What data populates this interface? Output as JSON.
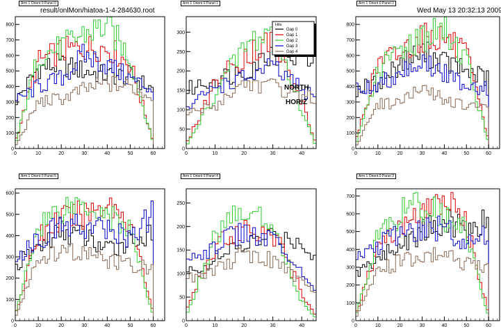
{
  "header": {
    "file": "result/onlMon/hiatoa-1-4-284630.root",
    "timestamp": "Wed May 13 20:32:13 2009"
  },
  "annotations": {
    "line1": "NORTH",
    "line2": "HORIZ"
  },
  "legend": {
    "title": "Hits",
    "entries": [
      "Gap 0",
      "Gap 1",
      "Gap 2",
      "Gap 3",
      "Gap 4"
    ]
  },
  "colors": {
    "Gap 0": "#000000",
    "Gap 1": "#e00000",
    "Gap 2": "#33cc33",
    "Gap 3": "#0000cc",
    "Gap 4": "#8a6a55",
    "axis": "#000000"
  },
  "chart_data": [
    {
      "type": "histogram",
      "title": "Arm 1 Orient 0 Panel 0",
      "xlim": [
        0,
        65
      ],
      "ylim": [
        0,
        850
      ],
      "xticks": [
        0,
        10,
        20,
        30,
        40,
        50,
        60
      ],
      "yticks": [
        0,
        100,
        200,
        300,
        400,
        500,
        600,
        700,
        800
      ],
      "nbins": 60,
      "series": [
        {
          "name": "Gap 0",
          "x": [
            0,
            10,
            20,
            30,
            40,
            50,
            60
          ],
          "y": [
            300,
            520,
            540,
            500,
            470,
            470,
            380
          ]
        },
        {
          "name": "Gap 1",
          "x": [
            0,
            10,
            20,
            30,
            40,
            50,
            60
          ],
          "y": [
            40,
            560,
            630,
            650,
            650,
            550,
            50
          ]
        },
        {
          "name": "Gap 2",
          "x": [
            0,
            10,
            20,
            30,
            40,
            50,
            60
          ],
          "y": [
            20,
            600,
            650,
            740,
            790,
            590,
            30
          ]
        },
        {
          "name": "Gap 3",
          "x": [
            0,
            10,
            20,
            30,
            40,
            50,
            60
          ],
          "y": [
            300,
            400,
            450,
            600,
            540,
            450,
            380
          ]
        },
        {
          "name": "Gap 4",
          "x": [
            0,
            10,
            20,
            30,
            40,
            50,
            60
          ],
          "y": [
            10,
            300,
            320,
            380,
            420,
            400,
            330
          ]
        }
      ]
    },
    {
      "type": "histogram",
      "title": "Arm 1 Orient 0 Panel 1",
      "xlim": [
        0,
        45
      ],
      "ylim": [
        0,
        340
      ],
      "xticks": [
        0,
        10,
        20,
        30,
        40
      ],
      "yticks": [
        0,
        50,
        100,
        150,
        200,
        250,
        300
      ],
      "nbins": 45,
      "series": [
        {
          "name": "Gap 0",
          "x": [
            0,
            10,
            20,
            30,
            40,
            45
          ],
          "y": [
            150,
            180,
            200,
            250,
            240,
            230
          ]
        },
        {
          "name": "Gap 1",
          "x": [
            0,
            10,
            20,
            30,
            40,
            45
          ],
          "y": [
            10,
            170,
            240,
            280,
            120,
            10
          ]
        },
        {
          "name": "Gap 2",
          "x": [
            0,
            10,
            20,
            30,
            40,
            45
          ],
          "y": [
            5,
            140,
            260,
            310,
            100,
            5
          ]
        },
        {
          "name": "Gap 3",
          "x": [
            0,
            10,
            20,
            30,
            40,
            45
          ],
          "y": [
            100,
            160,
            180,
            210,
            150,
            130
          ]
        },
        {
          "name": "Gap 4",
          "x": [
            0,
            10,
            20,
            30,
            40,
            45
          ],
          "y": [
            90,
            110,
            170,
            160,
            140,
            130
          ]
        }
      ]
    },
    {
      "type": "histogram",
      "title": "Arm 1 Orient 0 Panel 2",
      "xlim": [
        0,
        65
      ],
      "ylim": [
        0,
        850
      ],
      "xticks": [
        0,
        10,
        20,
        30,
        40,
        50,
        60
      ],
      "yticks": [
        0,
        100,
        200,
        300,
        400,
        500,
        600,
        700,
        800
      ],
      "nbins": 60,
      "series": [
        {
          "name": "Gap 0",
          "x": [
            0,
            10,
            20,
            30,
            40,
            50,
            60
          ],
          "y": [
            380,
            420,
            550,
            620,
            560,
            500,
            450
          ]
        },
        {
          "name": "Gap 1",
          "x": [
            0,
            10,
            20,
            30,
            40,
            50,
            60
          ],
          "y": [
            50,
            550,
            620,
            720,
            720,
            600,
            60
          ]
        },
        {
          "name": "Gap 2",
          "x": [
            0,
            10,
            20,
            30,
            40,
            50,
            60
          ],
          "y": [
            20,
            500,
            640,
            720,
            760,
            580,
            30
          ]
        },
        {
          "name": "Gap 3",
          "x": [
            0,
            10,
            20,
            30,
            40,
            50,
            60
          ],
          "y": [
            380,
            400,
            500,
            560,
            480,
            420,
            380
          ]
        },
        {
          "name": "Gap 4",
          "x": [
            0,
            10,
            20,
            30,
            40,
            50,
            60
          ],
          "y": [
            10,
            290,
            300,
            380,
            320,
            270,
            260
          ]
        }
      ]
    },
    {
      "type": "histogram",
      "title": "Arm 1 Orient 0 Panel 5",
      "xlim": [
        0,
        65
      ],
      "ylim": [
        0,
        620
      ],
      "xticks": [
        0,
        10,
        20,
        30,
        40,
        50,
        60
      ],
      "yticks": [
        0,
        100,
        200,
        300,
        400,
        500,
        600
      ],
      "nbins": 60,
      "series": [
        {
          "name": "Gap 0",
          "x": [
            0,
            10,
            20,
            30,
            40,
            50,
            60
          ],
          "y": [
            250,
            350,
            420,
            400,
            330,
            380,
            400
          ]
        },
        {
          "name": "Gap 1",
          "x": [
            0,
            10,
            20,
            30,
            40,
            50,
            60
          ],
          "y": [
            30,
            400,
            480,
            500,
            560,
            470,
            40
          ]
        },
        {
          "name": "Gap 2",
          "x": [
            0,
            10,
            20,
            30,
            40,
            50,
            60
          ],
          "y": [
            20,
            450,
            530,
            560,
            500,
            430,
            20
          ]
        },
        {
          "name": "Gap 3",
          "x": [
            0,
            10,
            20,
            30,
            40,
            50,
            60
          ],
          "y": [
            300,
            380,
            450,
            440,
            430,
            390,
            500
          ]
        },
        {
          "name": "Gap 4",
          "x": [
            0,
            10,
            20,
            30,
            40,
            50,
            60
          ],
          "y": [
            10,
            290,
            320,
            320,
            280,
            260,
            250
          ]
        }
      ]
    },
    {
      "type": "histogram",
      "title": "Arm 1 Orient 0 Panel 4",
      "xlim": [
        0,
        45
      ],
      "ylim": [
        0,
        280
      ],
      "xticks": [
        0,
        10,
        20,
        30,
        40
      ],
      "yticks": [
        0,
        50,
        100,
        150,
        200,
        250
      ],
      "nbins": 45,
      "series": [
        {
          "name": "Gap 0",
          "x": [
            0,
            10,
            20,
            30,
            40,
            45
          ],
          "y": [
            100,
            130,
            160,
            180,
            170,
            130
          ]
        },
        {
          "name": "Gap 1",
          "x": [
            0,
            10,
            20,
            30,
            40,
            45
          ],
          "y": [
            20,
            160,
            200,
            190,
            60,
            10
          ]
        },
        {
          "name": "Gap 2",
          "x": [
            0,
            10,
            20,
            30,
            40,
            45
          ],
          "y": [
            10,
            180,
            240,
            210,
            40,
            5
          ]
        },
        {
          "name": "Gap 3",
          "x": [
            0,
            10,
            20,
            30,
            40,
            45
          ],
          "y": [
            130,
            160,
            190,
            170,
            100,
            70
          ]
        },
        {
          "name": "Gap 4",
          "x": [
            0,
            10,
            20,
            30,
            40,
            45
          ],
          "y": [
            90,
            110,
            140,
            130,
            80,
            60
          ]
        }
      ]
    },
    {
      "type": "histogram",
      "title": "Arm 1 Orient 0 Panel 3",
      "xlim": [
        0,
        65
      ],
      "ylim": [
        0,
        740
      ],
      "xticks": [
        0,
        10,
        20,
        30,
        40,
        50,
        60
      ],
      "yticks": [
        0,
        100,
        200,
        300,
        400,
        500,
        600,
        700
      ],
      "nbins": 60,
      "series": [
        {
          "name": "Gap 0",
          "x": [
            0,
            10,
            20,
            30,
            40,
            50,
            60
          ],
          "y": [
            260,
            350,
            420,
            500,
            560,
            520,
            560
          ]
        },
        {
          "name": "Gap 1",
          "x": [
            0,
            10,
            20,
            30,
            40,
            50,
            60
          ],
          "y": [
            30,
            420,
            520,
            600,
            680,
            550,
            40
          ]
        },
        {
          "name": "Gap 2",
          "x": [
            0,
            10,
            20,
            30,
            40,
            50,
            60
          ],
          "y": [
            20,
            480,
            600,
            650,
            580,
            500,
            20
          ]
        },
        {
          "name": "Gap 3",
          "x": [
            0,
            10,
            20,
            30,
            40,
            50,
            60
          ],
          "y": [
            340,
            420,
            480,
            520,
            520,
            430,
            500
          ]
        },
        {
          "name": "Gap 4",
          "x": [
            0,
            10,
            20,
            30,
            40,
            50,
            60
          ],
          "y": [
            10,
            280,
            330,
            350,
            380,
            320,
            280
          ]
        }
      ]
    }
  ]
}
